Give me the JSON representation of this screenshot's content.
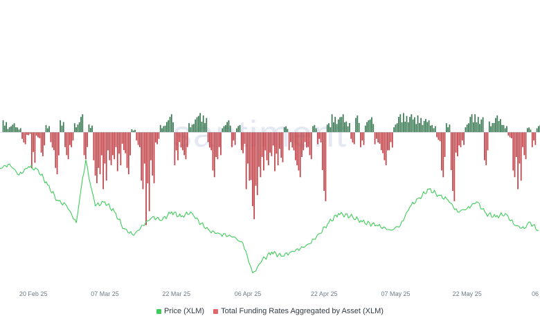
{
  "chart_data": {
    "type": "bar+line",
    "watermark": "santiment",
    "x_ticks": [
      "20 Feb 25",
      "07 Mar 25",
      "22 Mar 25",
      "06 Apr 25",
      "22 Apr 25",
      "07 May 25",
      "22 May 25",
      "06"
    ],
    "x_range": [
      "2025-02-13",
      "2025-06-06"
    ],
    "series": [
      {
        "name": "Price (XLM)",
        "type": "line",
        "color": "#3fcc5a",
        "y_range": [
          0.2,
          0.39
        ],
        "points": [
          [
            "2025-02-13",
            0.35
          ],
          [
            "2025-02-15",
            0.355
          ],
          [
            "2025-02-17",
            0.342
          ],
          [
            "2025-02-19",
            0.352
          ],
          [
            "2025-02-21",
            0.348
          ],
          [
            "2025-02-23",
            0.33
          ],
          [
            "2025-02-25",
            0.312
          ],
          [
            "2025-02-27",
            0.305
          ],
          [
            "2025-03-01",
            0.285
          ],
          [
            "2025-03-02",
            0.325
          ],
          [
            "2025-03-03",
            0.36
          ],
          [
            "2025-03-04",
            0.33
          ],
          [
            "2025-03-05",
            0.305
          ],
          [
            "2025-03-07",
            0.31
          ],
          [
            "2025-03-09",
            0.298
          ],
          [
            "2025-03-11",
            0.278
          ],
          [
            "2025-03-13",
            0.27
          ],
          [
            "2025-03-15",
            0.282
          ],
          [
            "2025-03-17",
            0.292
          ],
          [
            "2025-03-19",
            0.288
          ],
          [
            "2025-03-21",
            0.298
          ],
          [
            "2025-03-23",
            0.292
          ],
          [
            "2025-03-25",
            0.298
          ],
          [
            "2025-03-26",
            0.29
          ],
          [
            "2025-03-29",
            0.275
          ],
          [
            "2025-03-31",
            0.272
          ],
          [
            "2025-04-03",
            0.268
          ],
          [
            "2025-04-05",
            0.26
          ],
          [
            "2025-04-07",
            0.225
          ],
          [
            "2025-04-08",
            0.232
          ],
          [
            "2025-04-09",
            0.24
          ],
          [
            "2025-04-11",
            0.25
          ],
          [
            "2025-04-13",
            0.245
          ],
          [
            "2025-04-15",
            0.25
          ],
          [
            "2025-04-17",
            0.254
          ],
          [
            "2025-04-19",
            0.26
          ],
          [
            "2025-04-21",
            0.272
          ],
          [
            "2025-04-23",
            0.285
          ],
          [
            "2025-04-25",
            0.296
          ],
          [
            "2025-04-28",
            0.292
          ],
          [
            "2025-04-30",
            0.286
          ],
          [
            "2025-05-03",
            0.282
          ],
          [
            "2025-05-06",
            0.276
          ],
          [
            "2025-05-08",
            0.282
          ],
          [
            "2025-05-10",
            0.304
          ],
          [
            "2025-05-12",
            0.315
          ],
          [
            "2025-05-14",
            0.325
          ],
          [
            "2025-05-16",
            0.318
          ],
          [
            "2025-05-18",
            0.312
          ],
          [
            "2025-05-20",
            0.298
          ],
          [
            "2025-05-22",
            0.302
          ],
          [
            "2025-05-24",
            0.31
          ],
          [
            "2025-05-26",
            0.296
          ],
          [
            "2025-05-28",
            0.292
          ],
          [
            "2025-05-30",
            0.296
          ],
          [
            "2025-06-01",
            0.282
          ],
          [
            "2025-06-03",
            0.278
          ],
          [
            "2025-06-04",
            0.286
          ],
          [
            "2025-06-06",
            0.276
          ]
        ]
      },
      {
        "name": "Total Funding Rates Aggregated by Asset (XLM)",
        "type": "bar",
        "positive_color": "#3e7d57",
        "negative_color": "#c2474c",
        "y_range": [
          -0.016,
          0.0036
        ],
        "bars": [
          [
            "2025-02-14",
            0.002
          ],
          [
            "2025-02-15",
            0.001
          ],
          [
            "2025-02-16",
            0.0015
          ],
          [
            "2025-02-17",
            0.0008
          ],
          [
            "2025-02-18",
            -0.002
          ],
          [
            "2025-02-19",
            -0.0005
          ],
          [
            "2025-02-20",
            -0.006
          ],
          [
            "2025-02-21",
            -0.001
          ],
          [
            "2025-02-22",
            -0.004
          ],
          [
            "2025-02-23",
            0.0012
          ],
          [
            "2025-02-24",
            -0.003
          ],
          [
            "2025-02-25",
            -0.007
          ],
          [
            "2025-02-26",
            0.002
          ],
          [
            "2025-02-27",
            -0.0045
          ],
          [
            "2025-02-28",
            -0.0025
          ],
          [
            "2025-03-01",
            0.0015
          ],
          [
            "2025-03-02",
            0.003
          ],
          [
            "2025-03-03",
            -0.0045
          ],
          [
            "2025-03-04",
            0.0013
          ],
          [
            "2025-03-05",
            -0.0085
          ],
          [
            "2025-03-06",
            -0.007
          ],
          [
            "2025-03-07",
            -0.0095
          ],
          [
            "2025-03-08",
            -0.0055
          ],
          [
            "2025-03-09",
            -0.0045
          ],
          [
            "2025-03-10",
            -0.0065
          ],
          [
            "2025-03-11",
            -0.0035
          ],
          [
            "2025-03-12",
            -0.007
          ],
          [
            "2025-03-13",
            0.0005
          ],
          [
            "2025-03-14",
            -0.0025
          ],
          [
            "2025-03-15",
            -0.0095
          ],
          [
            "2025-03-16",
            -0.0155
          ],
          [
            "2025-03-17",
            -0.0085
          ],
          [
            "2025-03-18",
            -0.002
          ],
          [
            "2025-03-19",
            0.0012
          ],
          [
            "2025-03-20",
            0.002
          ],
          [
            "2025-03-21",
            0.003
          ],
          [
            "2025-03-22",
            -0.0055
          ],
          [
            "2025-03-23",
            -0.003
          ],
          [
            "2025-03-24",
            -0.0045
          ],
          [
            "2025-03-25",
            0.0015
          ],
          [
            "2025-03-26",
            0.0025
          ],
          [
            "2025-03-27",
            0.0032
          ],
          [
            "2025-03-28",
            0.0028
          ],
          [
            "2025-03-29",
            -0.003
          ],
          [
            "2025-03-30",
            -0.0075
          ],
          [
            "2025-03-31",
            -0.0045
          ],
          [
            "2025-04-01",
            0.0012
          ],
          [
            "2025-04-02",
            0.002
          ],
          [
            "2025-04-03",
            -0.0025
          ],
          [
            "2025-04-04",
            0.0012
          ],
          [
            "2025-04-05",
            -0.0035
          ],
          [
            "2025-04-06",
            -0.0095
          ],
          [
            "2025-04-07",
            -0.0145
          ],
          [
            "2025-04-08",
            -0.0105
          ],
          [
            "2025-04-09",
            -0.0075
          ],
          [
            "2025-04-10",
            -0.0055
          ],
          [
            "2025-04-11",
            -0.004
          ],
          [
            "2025-04-12",
            -0.0065
          ],
          [
            "2025-04-13",
            -0.005
          ],
          [
            "2025-04-14",
            0.001
          ],
          [
            "2025-04-15",
            -0.003
          ],
          [
            "2025-04-16",
            -0.0055
          ],
          [
            "2025-04-17",
            -0.0075
          ],
          [
            "2025-04-18",
            -0.003
          ],
          [
            "2025-04-19",
            -0.0045
          ],
          [
            "2025-04-20",
            0.0012
          ],
          [
            "2025-04-21",
            -0.002
          ],
          [
            "2025-04-22",
            -0.0115
          ],
          [
            "2025-04-23",
            0.0015
          ],
          [
            "2025-04-24",
            0.003
          ],
          [
            "2025-04-25",
            0.0025
          ],
          [
            "2025-04-26",
            0.003
          ],
          [
            "2025-04-27",
            0.0018
          ],
          [
            "2025-04-28",
            -0.002
          ],
          [
            "2025-04-29",
            0.0028
          ],
          [
            "2025-04-30",
            -0.0025
          ],
          [
            "2025-05-01",
            0.002
          ],
          [
            "2025-05-02",
            0.0025
          ],
          [
            "2025-05-03",
            -0.002
          ],
          [
            "2025-05-04",
            -0.0035
          ],
          [
            "2025-05-05",
            -0.0055
          ],
          [
            "2025-05-06",
            -0.003
          ],
          [
            "2025-05-07",
            0.0015
          ],
          [
            "2025-05-08",
            0.003
          ],
          [
            "2025-05-09",
            0.0032
          ],
          [
            "2025-05-10",
            0.003
          ],
          [
            "2025-05-11",
            0.0025
          ],
          [
            "2025-05-12",
            0.0028
          ],
          [
            "2025-05-13",
            0.0022
          ],
          [
            "2025-05-14",
            0.002
          ],
          [
            "2025-05-15",
            0.0012
          ],
          [
            "2025-05-16",
            -0.0015
          ],
          [
            "2025-05-17",
            -0.0075
          ],
          [
            "2025-05-18",
            0.0015
          ],
          [
            "2025-05-19",
            -0.0115
          ],
          [
            "2025-05-20",
            -0.004
          ],
          [
            "2025-05-21",
            -0.0025
          ],
          [
            "2025-05-22",
            0.0015
          ],
          [
            "2025-05-23",
            0.003
          ],
          [
            "2025-05-24",
            0.003
          ],
          [
            "2025-05-25",
            0.0025
          ],
          [
            "2025-05-26",
            -0.0055
          ],
          [
            "2025-05-27",
            0.0018
          ],
          [
            "2025-05-28",
            0.0028
          ],
          [
            "2025-05-29",
            0.0022
          ],
          [
            "2025-05-30",
            0.0012
          ],
          [
            "2025-05-31",
            -0.001
          ],
          [
            "2025-06-01",
            -0.0075
          ],
          [
            "2025-06-02",
            -0.0095
          ],
          [
            "2025-06-03",
            -0.0045
          ],
          [
            "2025-06-04",
            0.0008
          ],
          [
            "2025-06-05",
            -0.0025
          ],
          [
            "2025-06-06",
            0.0012
          ]
        ]
      }
    ],
    "legend": [
      {
        "label": "Price (XLM)",
        "color": "#3fcc5a"
      },
      {
        "label": "Total Funding Rates Aggregated by Asset (XLM)",
        "color": "#e0686c"
      }
    ],
    "legend_position": "bottom-center",
    "grid": false
  }
}
